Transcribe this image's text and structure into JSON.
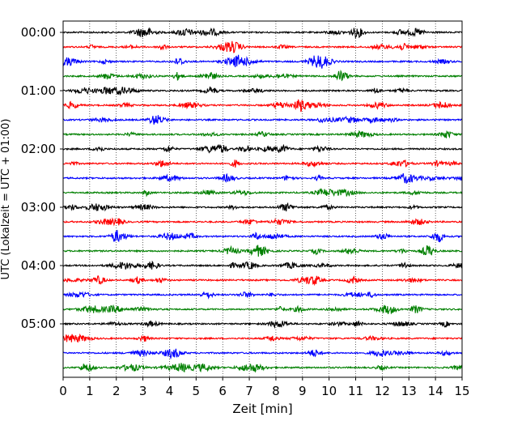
{
  "chart_data": {
    "type": "line",
    "title": "",
    "xlabel": "Zeit  [min]",
    "ylabel": "UTC (Lokalzeit = UTC + 01:00)",
    "xlim": [
      0,
      15
    ],
    "x_ticks": [
      0,
      1,
      2,
      3,
      4,
      5,
      6,
      7,
      8,
      9,
      10,
      11,
      12,
      13,
      14,
      15
    ],
    "y_tick_labels": [
      "00:00",
      "01:00",
      "02:00",
      "03:00",
      "04:00",
      "05:00"
    ],
    "y_tick_rows": [
      0,
      4,
      8,
      12,
      16,
      20
    ],
    "grid": "vertical dotted",
    "row_interval_min": 15,
    "row_count": 24,
    "colors": [
      "#000000",
      "#ff0000",
      "#0000ff",
      "#008000"
    ],
    "series": [
      {
        "start": "00:00",
        "color": "#000000"
      },
      {
        "start": "00:15",
        "color": "#ff0000"
      },
      {
        "start": "00:30",
        "color": "#0000ff"
      },
      {
        "start": "00:45",
        "color": "#008000"
      },
      {
        "start": "01:00",
        "color": "#000000"
      },
      {
        "start": "01:15",
        "color": "#ff0000"
      },
      {
        "start": "01:30",
        "color": "#0000ff"
      },
      {
        "start": "01:45",
        "color": "#008000"
      },
      {
        "start": "02:00",
        "color": "#000000"
      },
      {
        "start": "02:15",
        "color": "#ff0000"
      },
      {
        "start": "02:30",
        "color": "#0000ff"
      },
      {
        "start": "02:45",
        "color": "#008000"
      },
      {
        "start": "03:00",
        "color": "#000000"
      },
      {
        "start": "03:15",
        "color": "#ff0000"
      },
      {
        "start": "03:30",
        "color": "#0000ff"
      },
      {
        "start": "03:45",
        "color": "#008000"
      },
      {
        "start": "04:00",
        "color": "#000000"
      },
      {
        "start": "04:15",
        "color": "#ff0000"
      },
      {
        "start": "04:30",
        "color": "#0000ff"
      },
      {
        "start": "04:45",
        "color": "#008000"
      },
      {
        "start": "05:00",
        "color": "#000000"
      },
      {
        "start": "05:15",
        "color": "#ff0000"
      },
      {
        "start": "05:30",
        "color": "#0000ff"
      },
      {
        "start": "05:45",
        "color": "#008000"
      }
    ]
  }
}
